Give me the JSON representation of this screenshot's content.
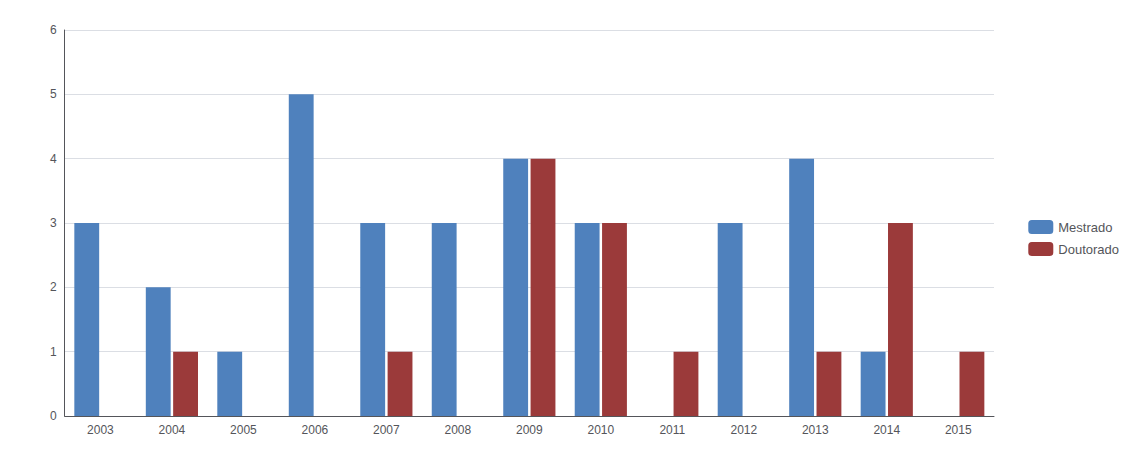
{
  "chart_data": {
    "type": "bar",
    "categories": [
      "2003",
      "2004",
      "2005",
      "2006",
      "2007",
      "2008",
      "2009",
      "2010",
      "2011",
      "2012",
      "2013",
      "2014",
      "2015"
    ],
    "series": [
      {
        "name": "Mestrado",
        "color": "#4F81BD",
        "values": [
          3,
          2,
          1,
          5,
          3,
          3,
          4,
          3,
          0,
          3,
          4,
          1,
          0
        ]
      },
      {
        "name": "Doutorado",
        "color": "#9B3A3A",
        "values": [
          0,
          1,
          0,
          0,
          1,
          0,
          4,
          3,
          1,
          0,
          1,
          3,
          1
        ]
      }
    ],
    "ylim": [
      0,
      6
    ],
    "yticks": [
      0,
      1,
      2,
      3,
      4,
      5,
      6
    ],
    "grid": true,
    "legend": "right"
  }
}
